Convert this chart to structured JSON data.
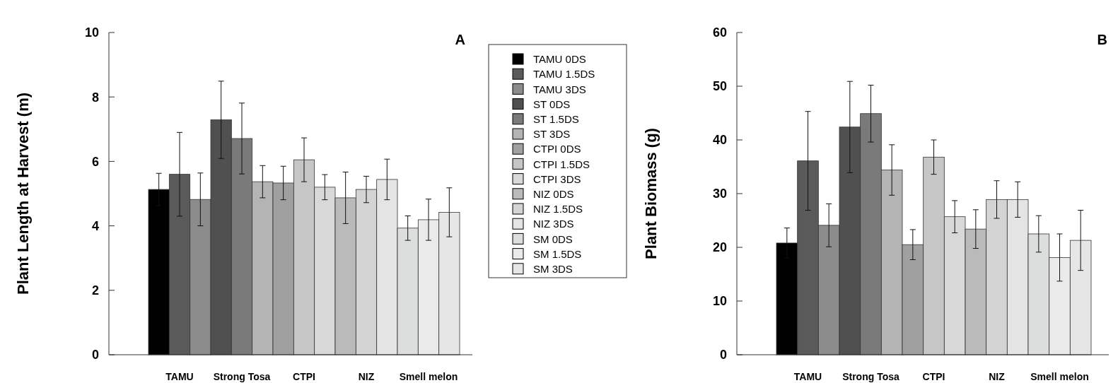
{
  "chart_data": [
    {
      "type": "bar",
      "title": "A",
      "ylabel": "Plant Length at Harvest (m)",
      "stacked": true,
      "legend": "right",
      "grid": false,
      "ylim": [
        0,
        10
      ],
      "yticks": [
        0,
        2,
        4,
        6,
        8,
        10
      ],
      "categories": [
        null,
        "TAMU",
        null,
        null,
        "Strong Tosa",
        null,
        null,
        "CTPI",
        null,
        null,
        "NIZ",
        null,
        null,
        "Smell melon",
        null
      ],
      "series": [
        {
          "name": "TAMU 0DS",
          "color": "#000000",
          "values": [
            5.13,
            null,
            null,
            null,
            null,
            null,
            null,
            null,
            null,
            null,
            null,
            null,
            null,
            null,
            null
          ],
          "errors": [
            0.5,
            null,
            null,
            null,
            null,
            null,
            null,
            null,
            null,
            null,
            null,
            null,
            null,
            null,
            null
          ]
        },
        {
          "name": "TAMU 1.5DS",
          "color": "#5a5a5a",
          "values": [
            null,
            5.6,
            null,
            null,
            null,
            null,
            null,
            null,
            null,
            null,
            null,
            null,
            null,
            null,
            null
          ],
          "errors": [
            null,
            1.3,
            null,
            null,
            null,
            null,
            null,
            null,
            null,
            null,
            null,
            null,
            null,
            null,
            null
          ]
        },
        {
          "name": "TAMU 3DS",
          "color": "#8c8c8c",
          "values": [
            null,
            null,
            4.82,
            null,
            null,
            null,
            null,
            null,
            null,
            null,
            null,
            null,
            null,
            null,
            null
          ],
          "errors": [
            null,
            null,
            0.82,
            null,
            null,
            null,
            null,
            null,
            null,
            null,
            null,
            null,
            null,
            null,
            null
          ]
        },
        {
          "name": "ST 0DS",
          "color": "#505050",
          "values": [
            null,
            null,
            null,
            7.29,
            null,
            null,
            null,
            null,
            null,
            null,
            null,
            null,
            null,
            null,
            null
          ],
          "errors": [
            null,
            null,
            null,
            1.2,
            null,
            null,
            null,
            null,
            null,
            null,
            null,
            null,
            null,
            null,
            null
          ]
        },
        {
          "name": "ST 1.5DS",
          "color": "#7a7a7a",
          "values": [
            null,
            null,
            null,
            null,
            6.71,
            null,
            null,
            null,
            null,
            null,
            null,
            null,
            null,
            null,
            null
          ],
          "errors": [
            null,
            null,
            null,
            null,
            1.1,
            null,
            null,
            null,
            null,
            null,
            null,
            null,
            null,
            null,
            null
          ]
        },
        {
          "name": "ST 3DS",
          "color": "#b4b4b4",
          "values": [
            null,
            null,
            null,
            null,
            null,
            5.37,
            null,
            null,
            null,
            null,
            null,
            null,
            null,
            null,
            null
          ],
          "errors": [
            null,
            null,
            null,
            null,
            null,
            0.5,
            null,
            null,
            null,
            null,
            null,
            null,
            null,
            null,
            null
          ]
        },
        {
          "name": "CTPI 0DS",
          "color": "#a0a0a0",
          "values": [
            null,
            null,
            null,
            null,
            null,
            null,
            5.33,
            null,
            null,
            null,
            null,
            null,
            null,
            null,
            null
          ],
          "errors": [
            null,
            null,
            null,
            null,
            null,
            null,
            0.52,
            null,
            null,
            null,
            null,
            null,
            null,
            null,
            null
          ]
        },
        {
          "name": "CTPI 1.5DS",
          "color": "#c6c6c6",
          "values": [
            null,
            null,
            null,
            null,
            null,
            null,
            null,
            6.05,
            null,
            null,
            null,
            null,
            null,
            null,
            null
          ],
          "errors": [
            null,
            null,
            null,
            null,
            null,
            null,
            null,
            0.68,
            null,
            null,
            null,
            null,
            null,
            null,
            null
          ]
        },
        {
          "name": "CTPI 3DS",
          "color": "#d8d8d8",
          "values": [
            null,
            null,
            null,
            null,
            null,
            null,
            null,
            null,
            5.2,
            null,
            null,
            null,
            null,
            null,
            null
          ],
          "errors": [
            null,
            null,
            null,
            null,
            null,
            null,
            null,
            null,
            0.39,
            null,
            null,
            null,
            null,
            null,
            null
          ]
        },
        {
          "name": "NIZ 0DS",
          "color": "#bababa",
          "values": [
            null,
            null,
            null,
            null,
            null,
            null,
            null,
            null,
            null,
            4.87,
            null,
            null,
            null,
            null,
            null
          ],
          "errors": [
            null,
            null,
            null,
            null,
            null,
            null,
            null,
            null,
            null,
            0.8,
            null,
            null,
            null,
            null,
            null
          ]
        },
        {
          "name": "NIZ 1.5DS",
          "color": "#d4d4d4",
          "values": [
            null,
            null,
            null,
            null,
            null,
            null,
            null,
            null,
            null,
            null,
            5.13,
            null,
            null,
            null,
            null
          ],
          "errors": [
            null,
            null,
            null,
            null,
            null,
            null,
            null,
            null,
            null,
            null,
            0.41,
            null,
            null,
            null,
            null
          ]
        },
        {
          "name": "NIZ 3DS",
          "color": "#e4e4e4",
          "values": [
            null,
            null,
            null,
            null,
            null,
            null,
            null,
            null,
            null,
            null,
            null,
            5.44,
            null,
            null,
            null
          ],
          "errors": [
            null,
            null,
            null,
            null,
            null,
            null,
            null,
            null,
            null,
            null,
            null,
            0.63,
            null,
            null,
            null
          ]
        },
        {
          "name": "SM 0DS",
          "color": "#dcdedd",
          "values": [
            null,
            null,
            null,
            null,
            null,
            null,
            null,
            null,
            null,
            null,
            null,
            null,
            3.93,
            null,
            null
          ],
          "errors": [
            null,
            null,
            null,
            null,
            null,
            null,
            null,
            null,
            null,
            null,
            null,
            null,
            0.38,
            null,
            null
          ]
        },
        {
          "name": "SM 1.5DS",
          "color": "#eaeaea",
          "values": [
            null,
            null,
            null,
            null,
            null,
            null,
            null,
            null,
            null,
            null,
            null,
            null,
            null,
            4.19,
            null
          ],
          "errors": [
            null,
            null,
            null,
            null,
            null,
            null,
            null,
            null,
            null,
            null,
            null,
            null,
            null,
            0.64,
            null
          ]
        },
        {
          "name": "SM 3DS",
          "color": "#e6e6e6",
          "values": [
            null,
            null,
            null,
            null,
            null,
            null,
            null,
            null,
            null,
            null,
            null,
            null,
            null,
            null,
            4.42
          ],
          "errors": [
            null,
            null,
            null,
            null,
            null,
            null,
            null,
            null,
            null,
            null,
            null,
            null,
            null,
            null,
            0.76
          ]
        }
      ]
    },
    {
      "type": "bar",
      "title": "B",
      "ylabel": "Plant Biomass (g)",
      "stacked": true,
      "grid": false,
      "ylim": [
        0,
        60
      ],
      "yticks": [
        0,
        10,
        20,
        30,
        40,
        50,
        60
      ],
      "categories": [
        null,
        "TAMU",
        null,
        null,
        "Strong Tosa",
        null,
        null,
        "CTPI",
        null,
        null,
        "NIZ",
        null,
        null,
        "Smell melon",
        null
      ],
      "series": [
        {
          "color": "#000000",
          "values": [
            20.8,
            null,
            null,
            null,
            null,
            null,
            null,
            null,
            null,
            null,
            null,
            null,
            null,
            null,
            null
          ],
          "errors": [
            2.8,
            null,
            null,
            null,
            null,
            null,
            null,
            null,
            null,
            null,
            null,
            null,
            null,
            null,
            null
          ]
        },
        {
          "color": "#5a5a5a",
          "values": [
            null,
            36.1,
            null,
            null,
            null,
            null,
            null,
            null,
            null,
            null,
            null,
            null,
            null,
            null,
            null
          ],
          "errors": [
            null,
            9.2,
            null,
            null,
            null,
            null,
            null,
            null,
            null,
            null,
            null,
            null,
            null,
            null,
            null
          ]
        },
        {
          "color": "#8c8c8c",
          "values": [
            null,
            null,
            24.1,
            null,
            null,
            null,
            null,
            null,
            null,
            null,
            null,
            null,
            null,
            null,
            null
          ],
          "errors": [
            null,
            null,
            4,
            null,
            null,
            null,
            null,
            null,
            null,
            null,
            null,
            null,
            null,
            null,
            null
          ]
        },
        {
          "color": "#505050",
          "values": [
            null,
            null,
            null,
            42.4,
            null,
            null,
            null,
            null,
            null,
            null,
            null,
            null,
            null,
            null,
            null
          ],
          "errors": [
            null,
            null,
            null,
            8.5,
            null,
            null,
            null,
            null,
            null,
            null,
            null,
            null,
            null,
            null,
            null
          ]
        },
        {
          "color": "#7a7a7a",
          "values": [
            null,
            null,
            null,
            null,
            44.9,
            null,
            null,
            null,
            null,
            null,
            null,
            null,
            null,
            null,
            null
          ],
          "errors": [
            null,
            null,
            null,
            null,
            5.3,
            null,
            null,
            null,
            null,
            null,
            null,
            null,
            null,
            null,
            null
          ]
        },
        {
          "color": "#b4b4b4",
          "values": [
            null,
            null,
            null,
            null,
            null,
            34.4,
            null,
            null,
            null,
            null,
            null,
            null,
            null,
            null,
            null
          ],
          "errors": [
            null,
            null,
            null,
            null,
            null,
            4.7,
            null,
            null,
            null,
            null,
            null,
            null,
            null,
            null,
            null
          ]
        },
        {
          "color": "#a0a0a0",
          "values": [
            null,
            null,
            null,
            null,
            null,
            null,
            20.5,
            null,
            null,
            null,
            null,
            null,
            null,
            null,
            null
          ],
          "errors": [
            null,
            null,
            null,
            null,
            null,
            null,
            2.8,
            null,
            null,
            null,
            null,
            null,
            null,
            null,
            null
          ]
        },
        {
          "color": "#c6c6c6",
          "values": [
            null,
            null,
            null,
            null,
            null,
            null,
            null,
            36.8,
            null,
            null,
            null,
            null,
            null,
            null,
            null
          ],
          "errors": [
            null,
            null,
            null,
            null,
            null,
            null,
            null,
            3.2,
            null,
            null,
            null,
            null,
            null,
            null,
            null
          ]
        },
        {
          "color": "#d8d8d8",
          "values": [
            null,
            null,
            null,
            null,
            null,
            null,
            null,
            null,
            25.7,
            null,
            null,
            null,
            null,
            null,
            null
          ],
          "errors": [
            null,
            null,
            null,
            null,
            null,
            null,
            null,
            null,
            3,
            null,
            null,
            null,
            null,
            null,
            null
          ]
        },
        {
          "color": "#bababa",
          "values": [
            null,
            null,
            null,
            null,
            null,
            null,
            null,
            null,
            null,
            23.4,
            null,
            null,
            null,
            null,
            null
          ],
          "errors": [
            null,
            null,
            null,
            null,
            null,
            null,
            null,
            null,
            null,
            3.6,
            null,
            null,
            null,
            null,
            null
          ]
        },
        {
          "color": "#d4d4d4",
          "values": [
            null,
            null,
            null,
            null,
            null,
            null,
            null,
            null,
            null,
            null,
            28.9,
            null,
            null,
            null,
            null
          ],
          "errors": [
            null,
            null,
            null,
            null,
            null,
            null,
            null,
            null,
            null,
            null,
            3.5,
            null,
            null,
            null,
            null
          ]
        },
        {
          "color": "#e4e4e4",
          "values": [
            null,
            null,
            null,
            null,
            null,
            null,
            null,
            null,
            null,
            null,
            null,
            28.9,
            null,
            null,
            null
          ],
          "errors": [
            null,
            null,
            null,
            null,
            null,
            null,
            null,
            null,
            null,
            null,
            null,
            3.3,
            null,
            null,
            null
          ]
        },
        {
          "color": "#dcdedd",
          "values": [
            null,
            null,
            null,
            null,
            null,
            null,
            null,
            null,
            null,
            null,
            null,
            null,
            22.5,
            null,
            null
          ],
          "errors": [
            null,
            null,
            null,
            null,
            null,
            null,
            null,
            null,
            null,
            null,
            null,
            null,
            3.4,
            null,
            null
          ]
        },
        {
          "color": "#eaeaea",
          "values": [
            null,
            null,
            null,
            null,
            null,
            null,
            null,
            null,
            null,
            null,
            null,
            null,
            null,
            18.1,
            null
          ],
          "errors": [
            null,
            null,
            null,
            null,
            null,
            null,
            null,
            null,
            null,
            null,
            null,
            null,
            null,
            4.4,
            null
          ]
        },
        {
          "color": "#e6e6e6",
          "values": [
            null,
            null,
            null,
            null,
            null,
            null,
            null,
            null,
            null,
            null,
            null,
            null,
            null,
            null,
            21.3
          ],
          "errors": [
            null,
            null,
            null,
            null,
            null,
            null,
            null,
            null,
            null,
            null,
            null,
            null,
            null,
            null,
            5.6
          ]
        }
      ]
    }
  ]
}
